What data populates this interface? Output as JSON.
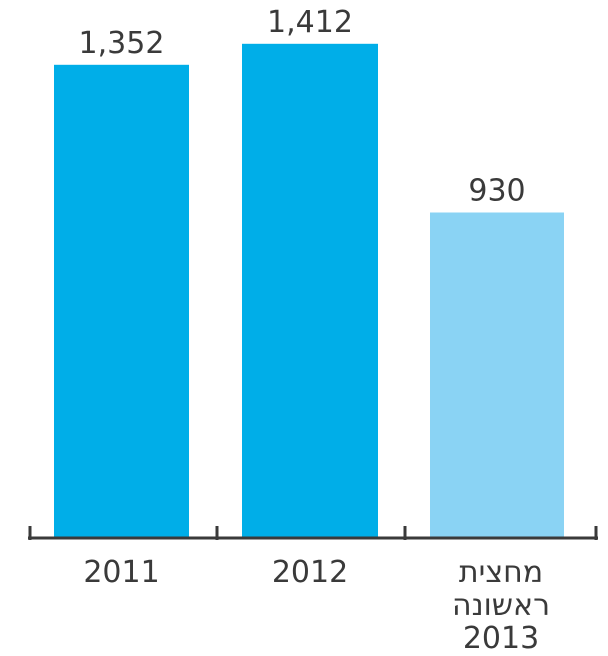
{
  "chart_data": {
    "type": "bar",
    "categories": [
      [
        "2011"
      ],
      [
        "2012"
      ],
      [
        "מחצית",
        "ראשונה",
        "2013"
      ]
    ],
    "values": [
      1352,
      1412,
      930
    ],
    "value_labels": [
      "1,352",
      "1,412",
      "930"
    ],
    "ylim": [
      0,
      1500
    ],
    "grid": false,
    "legend": "none",
    "colors": [
      "#00aee8",
      "#00aee8",
      "#8ad3f4"
    ],
    "axis_color": "#3a3a3a"
  }
}
